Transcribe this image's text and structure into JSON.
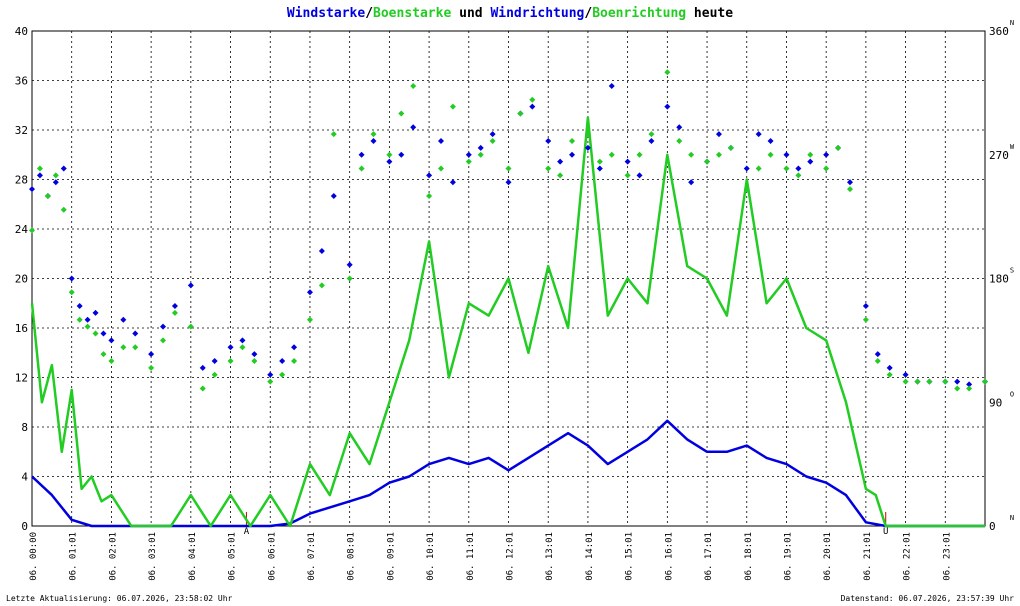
{
  "title": {
    "parts": [
      {
        "text": "Windstarke",
        "color": "wind"
      },
      {
        "text": "/",
        "color": "plain"
      },
      {
        "text": "Boenstarke",
        "color": "gust"
      },
      {
        "text": " und ",
        "color": "plain"
      },
      {
        "text": "Windrichtung",
        "color": "wind"
      },
      {
        "text": "/",
        "color": "plain"
      },
      {
        "text": "Boenrichtung",
        "color": "gust"
      },
      {
        "text": " heute",
        "color": "plain"
      }
    ]
  },
  "colors": {
    "wind": "#0000e0",
    "gust": "#22cc22",
    "plain": "#000000",
    "grid": "#000000",
    "marker": "#cc0000"
  },
  "footer": {
    "left": "Letzte Aktualisierung: 06.07.2026, 23:58:02 Uhr",
    "right": "Datenstand: 06.07.2026, 23:57:39 Uhr"
  },
  "chart_data": {
    "type": "line",
    "y_left": {
      "min": 0,
      "max": 40,
      "ticks": [
        0,
        4,
        8,
        12,
        16,
        20,
        24,
        28,
        32,
        36,
        40
      ]
    },
    "y_right": {
      "min": 0,
      "max": 360,
      "ticks": [
        0,
        90,
        180,
        270,
        360
      ],
      "direction_letters": [
        {
          "value": 0,
          "label": "N"
        },
        {
          "value": 90,
          "label": "O"
        },
        {
          "value": 180,
          "label": "S"
        },
        {
          "value": 270,
          "label": "W"
        },
        {
          "value": 360,
          "label": "N"
        }
      ]
    },
    "x_labels": [
      "06. 00:00",
      "06. 01:01",
      "06. 02:01",
      "06. 03:01",
      "06. 04:01",
      "06. 05:01",
      "06. 06:01",
      "06. 07:01",
      "06. 08:01",
      "06. 09:01",
      "06. 10:01",
      "06. 11:01",
      "06. 12:01",
      "06. 13:01",
      "06. 14:01",
      "06. 15:01",
      "06. 16:01",
      "06. 17:01",
      "06. 18:01",
      "06. 19:01",
      "06. 20:01",
      "06. 21:01",
      "06. 22:01",
      "06. 23:01"
    ],
    "event_markers": [
      {
        "hour": 5.4,
        "label": "A"
      },
      {
        "hour": 21.5,
        "label": "U"
      }
    ],
    "grid": true,
    "series": [
      {
        "name": "Windstarke",
        "color": "wind",
        "hours": [
          0,
          0.5,
          1,
          1.5,
          2,
          2.5,
          3,
          3.5,
          4,
          4.5,
          5,
          5.5,
          6,
          6.5,
          7,
          7.5,
          8,
          8.5,
          9,
          9.5,
          10,
          10.5,
          11,
          11.5,
          12,
          12.5,
          13,
          13.5,
          14,
          14.5,
          15,
          15.5,
          16,
          16.5,
          17,
          17.5,
          18,
          18.5,
          19,
          19.5,
          20,
          20.5,
          21,
          21.5,
          22,
          22.5,
          23,
          23.5,
          24
        ],
        "values": [
          4,
          2.5,
          0.5,
          0,
          0,
          0,
          0,
          0,
          0,
          0,
          0,
          0,
          0,
          0.2,
          1,
          1.5,
          2,
          2.5,
          3.5,
          4,
          5,
          5.5,
          5,
          5.5,
          4.5,
          5.5,
          6.5,
          7.5,
          6.5,
          5,
          6,
          7,
          8.5,
          7,
          6,
          6,
          6.5,
          5.5,
          5,
          4,
          3.5,
          2.5,
          0.3,
          0,
          0,
          0,
          0,
          0,
          0
        ]
      },
      {
        "name": "Boenstarke",
        "color": "gust",
        "hours": [
          0,
          0.25,
          0.5,
          0.75,
          1,
          1.25,
          1.5,
          1.75,
          2,
          2.5,
          3,
          3.5,
          4,
          4.5,
          5,
          5.5,
          6,
          6.5,
          7,
          7.5,
          8,
          8.5,
          9,
          9.5,
          10,
          10.5,
          11,
          11.5,
          12,
          12.5,
          13,
          13.5,
          14,
          14.5,
          15,
          15.5,
          16,
          16.5,
          17,
          17.5,
          18,
          18.5,
          19,
          19.5,
          20,
          20.5,
          21,
          21.25,
          21.5,
          22,
          22.5,
          23,
          23.5,
          24
        ],
        "values": [
          18,
          10,
          13,
          6,
          11,
          3,
          4,
          2,
          2.5,
          0,
          0,
          0,
          2.5,
          0,
          2.5,
          0,
          2.5,
          0,
          5,
          2.5,
          7.5,
          5,
          10,
          15,
          23,
          12,
          18,
          17,
          20,
          14,
          21,
          16,
          33,
          17,
          20,
          18,
          30,
          21,
          20,
          17,
          28,
          18,
          20,
          16,
          15,
          10,
          3,
          2.5,
          0,
          0,
          0,
          0,
          0,
          0
        ]
      },
      {
        "name": "Windrichtung",
        "color": "wind",
        "type": "scatter",
        "hours": [
          0,
          0.2,
          0.4,
          0.6,
          0.8,
          1,
          1.2,
          1.4,
          1.6,
          1.8,
          2,
          2.3,
          2.6,
          3,
          3.3,
          3.6,
          4,
          4.3,
          4.6,
          5,
          5.3,
          5.6,
          6,
          6.3,
          6.6,
          7,
          7.3,
          7.6,
          8,
          8.3,
          8.6,
          9,
          9.3,
          9.6,
          10,
          10.3,
          10.6,
          11,
          11.3,
          11.6,
          12,
          12.3,
          12.6,
          13,
          13.3,
          13.6,
          14,
          14.3,
          14.6,
          15,
          15.3,
          15.6,
          16,
          16.3,
          16.6,
          17,
          17.3,
          17.6,
          18,
          18.3,
          18.6,
          19,
          19.3,
          19.6,
          20,
          20.3,
          20.6,
          21,
          21.3,
          21.6,
          22,
          22.3,
          22.6,
          23,
          23.3,
          23.6,
          24
        ],
        "values": [
          245,
          255,
          240,
          250,
          260,
          180,
          160,
          150,
          155,
          140,
          135,
          150,
          140,
          125,
          145,
          160,
          175,
          115,
          120,
          130,
          135,
          125,
          110,
          120,
          130,
          170,
          200,
          240,
          190,
          270,
          280,
          265,
          270,
          290,
          255,
          280,
          250,
          270,
          275,
          285,
          250,
          300,
          305,
          280,
          265,
          270,
          275,
          260,
          320,
          265,
          255,
          280,
          305,
          290,
          250,
          265,
          285,
          275,
          260,
          285,
          280,
          270,
          260,
          265,
          270,
          275,
          250,
          160,
          125,
          115,
          110,
          105,
          105,
          105,
          105,
          103,
          105
        ]
      },
      {
        "name": "Boenrichtung",
        "color": "gust",
        "type": "scatter",
        "hours": [
          0,
          0.2,
          0.4,
          0.6,
          0.8,
          1,
          1.2,
          1.4,
          1.6,
          1.8,
          2,
          2.3,
          2.6,
          3,
          3.3,
          3.6,
          4,
          4.3,
          4.6,
          5,
          5.3,
          5.6,
          6,
          6.3,
          6.6,
          7,
          7.3,
          7.6,
          8,
          8.3,
          8.6,
          9,
          9.3,
          9.6,
          10,
          10.3,
          10.6,
          11,
          11.3,
          11.6,
          12,
          12.3,
          12.6,
          13,
          13.3,
          13.6,
          14,
          14.3,
          14.6,
          15,
          15.3,
          15.6,
          16,
          16.3,
          16.6,
          17,
          17.3,
          17.6,
          18,
          18.3,
          18.6,
          19,
          19.3,
          19.6,
          20,
          20.3,
          20.6,
          21,
          21.3,
          21.6,
          22,
          22.3,
          22.6,
          23,
          23.3,
          23.6,
          24
        ],
        "values": [
          215,
          260,
          240,
          255,
          230,
          170,
          150,
          145,
          140,
          125,
          120,
          130,
          130,
          115,
          135,
          155,
          145,
          100,
          110,
          120,
          130,
          120,
          105,
          110,
          120,
          150,
          175,
          285,
          180,
          260,
          285,
          270,
          300,
          320,
          240,
          260,
          305,
          265,
          270,
          280,
          260,
          300,
          310,
          260,
          255,
          280,
          285,
          265,
          270,
          255,
          270,
          285,
          330,
          280,
          270,
          265,
          270,
          275,
          245,
          260,
          270,
          260,
          255,
          270,
          260,
          275,
          245,
          150,
          120,
          110,
          105,
          105,
          105,
          105,
          100,
          100,
          105
        ]
      }
    ]
  }
}
